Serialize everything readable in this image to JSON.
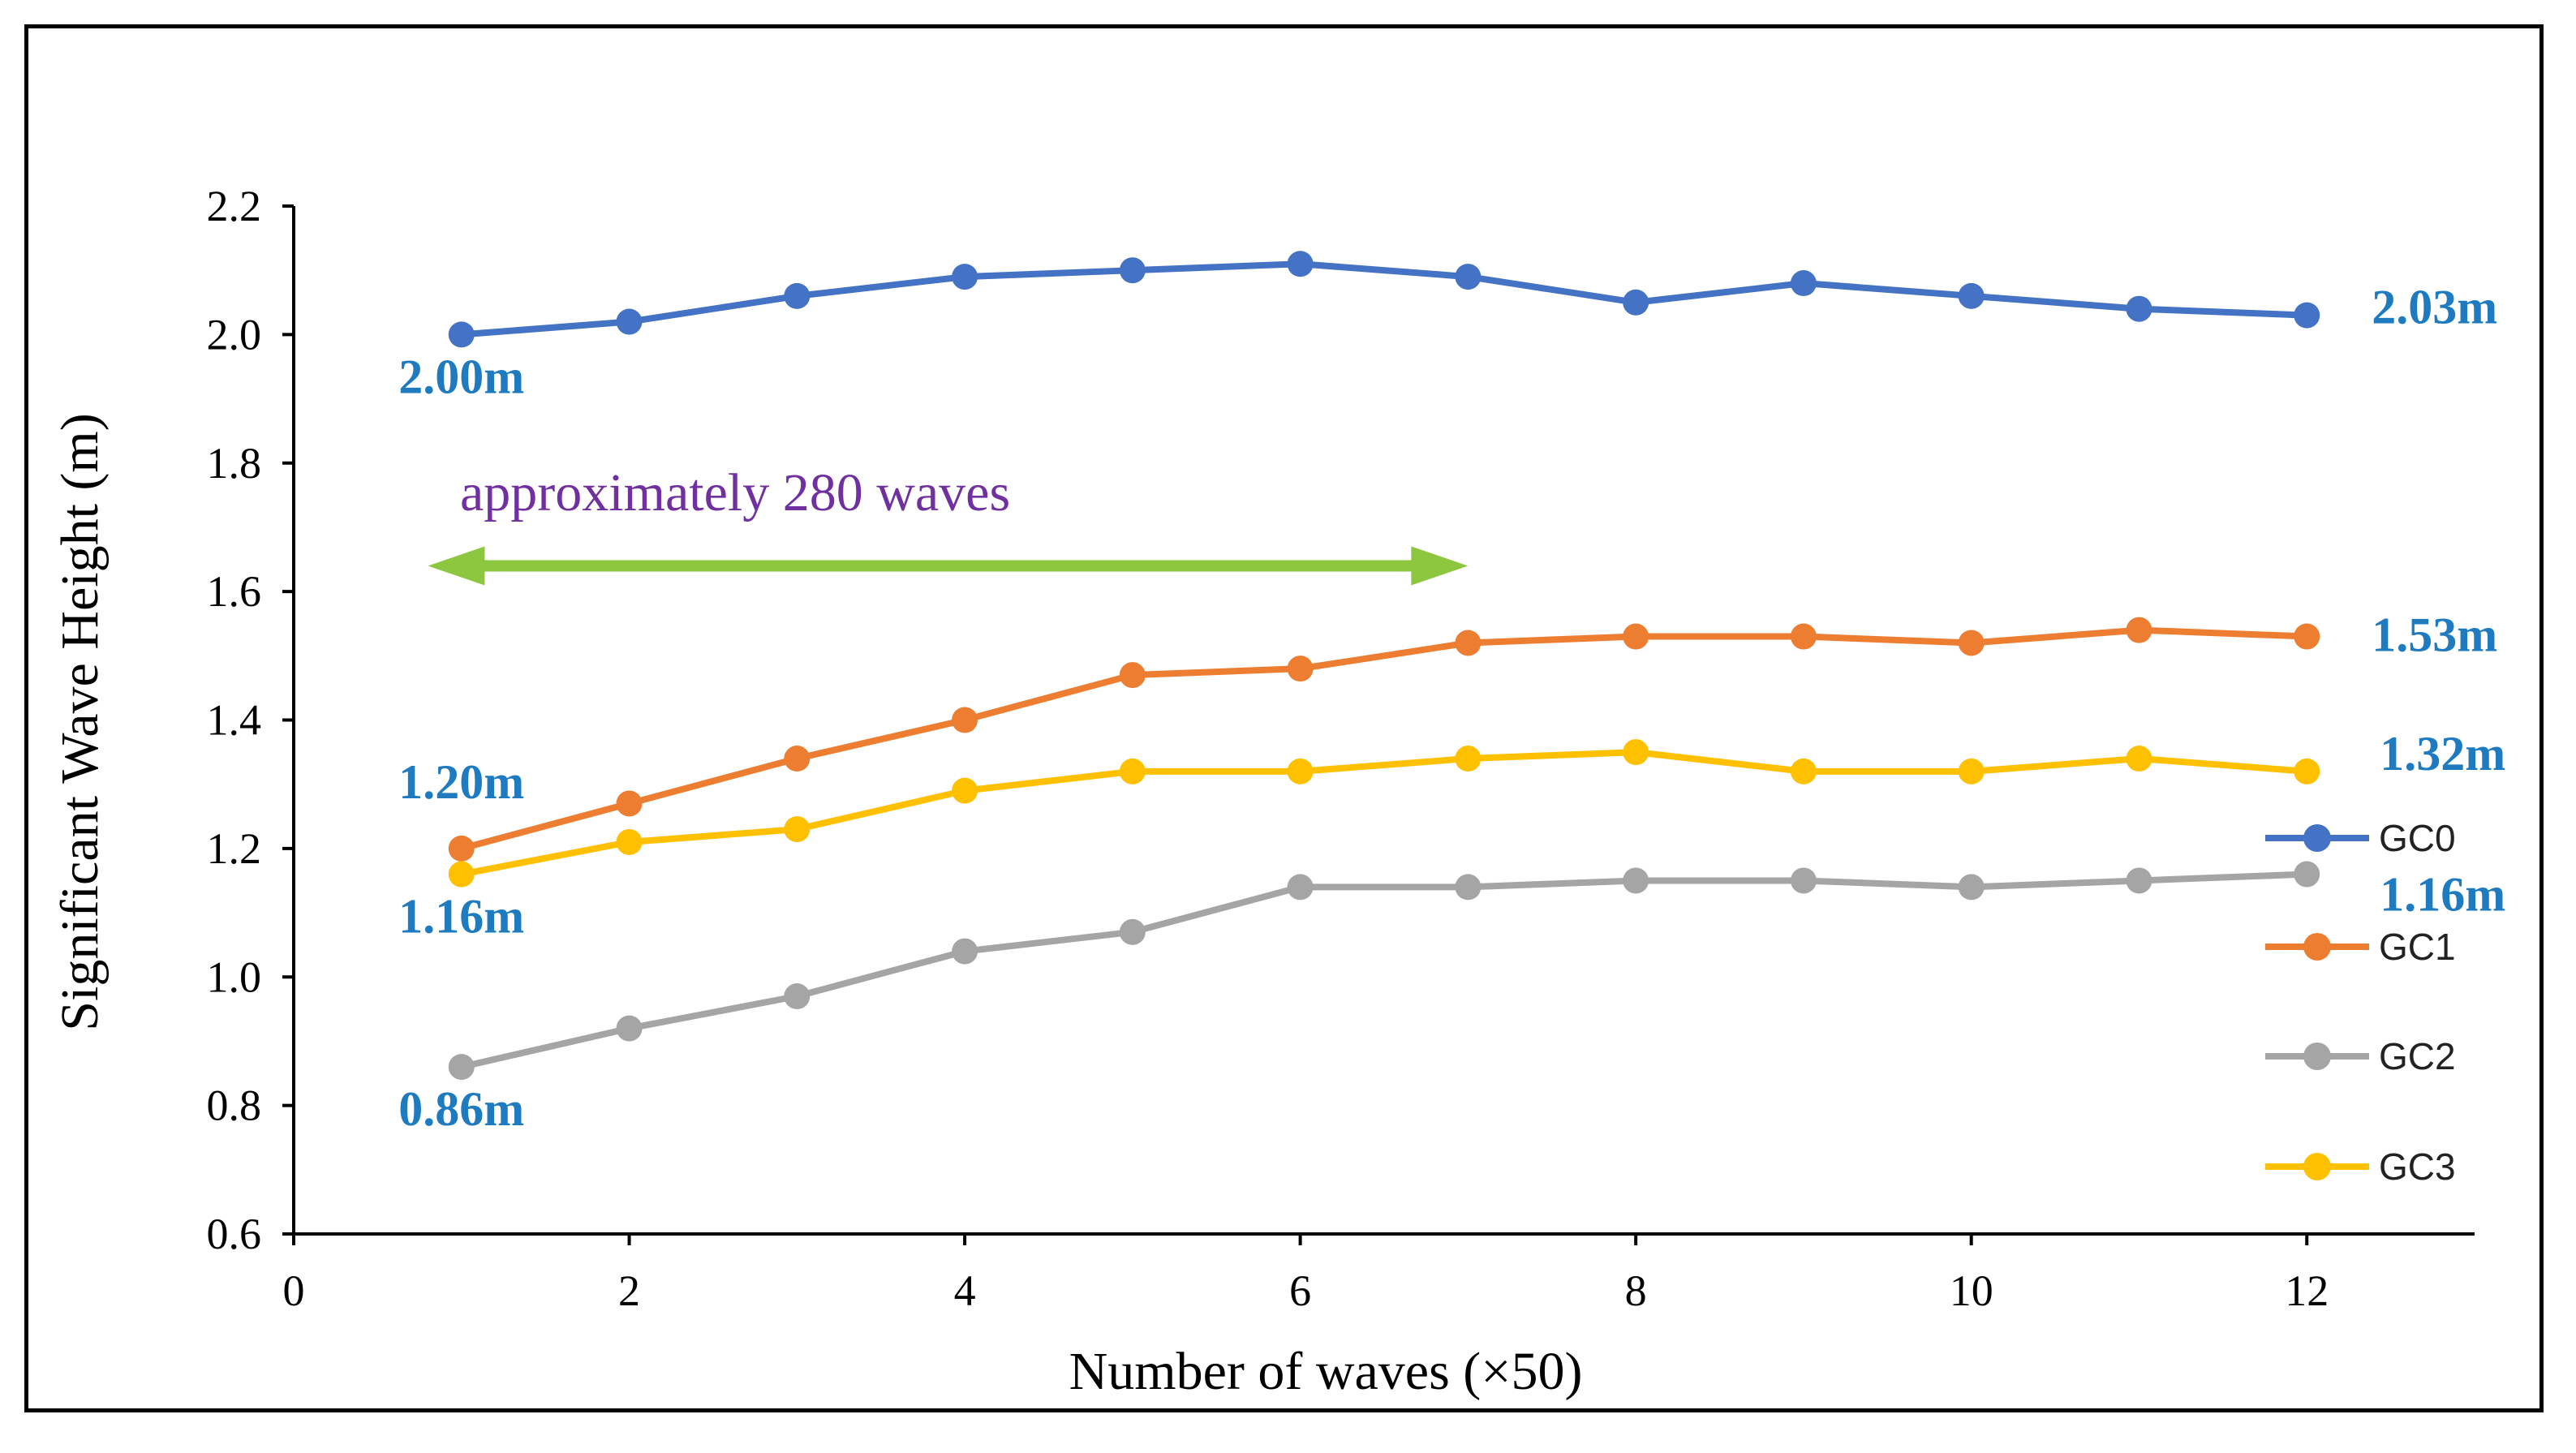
{
  "chart_data": {
    "type": "line",
    "xlabel": "Number of waves (×50)",
    "ylabel": "Significant Wave Height (m)",
    "xlim": [
      0,
      13
    ],
    "ylim": [
      0.6,
      2.2
    ],
    "x_ticks": [
      "0",
      "2",
      "4",
      "6",
      "8",
      "10",
      "12"
    ],
    "y_ticks": [
      "0.6",
      "0.8",
      "1.0",
      "1.2",
      "1.4",
      "1.6",
      "1.8",
      "2.0",
      "2.2"
    ],
    "x": [
      1,
      2,
      3,
      4,
      5,
      6,
      7,
      8,
      9,
      10,
      11,
      12
    ],
    "series": [
      {
        "name": "GC0",
        "color": "#4472C4",
        "values": [
          2.0,
          2.02,
          2.06,
          2.09,
          2.1,
          2.11,
          2.09,
          2.05,
          2.08,
          2.06,
          2.04,
          2.03
        ]
      },
      {
        "name": "GC1",
        "color": "#ED7D31",
        "values": [
          1.2,
          1.27,
          1.34,
          1.4,
          1.47,
          1.48,
          1.52,
          1.53,
          1.53,
          1.52,
          1.54,
          1.53
        ]
      },
      {
        "name": "GC2",
        "color": "#A5A5A5",
        "values": [
          0.86,
          0.92,
          0.97,
          1.04,
          1.07,
          1.14,
          1.14,
          1.15,
          1.15,
          1.14,
          1.15,
          1.16
        ]
      },
      {
        "name": "GC3",
        "color": "#FFC000",
        "values": [
          1.16,
          1.21,
          1.23,
          1.29,
          1.32,
          1.32,
          1.34,
          1.35,
          1.32,
          1.32,
          1.34,
          1.32
        ]
      }
    ],
    "value_labels": [
      {
        "text": "2.00m",
        "series": "GC0",
        "side": "start"
      },
      {
        "text": "2.03m",
        "series": "GC0",
        "side": "end"
      },
      {
        "text": "1.20m",
        "series": "GC1",
        "side": "start"
      },
      {
        "text": "1.53m",
        "series": "GC1",
        "side": "end"
      },
      {
        "text": "1.16m",
        "series": "GC3",
        "side": "start"
      },
      {
        "text": "1.32m",
        "series": "GC3",
        "side": "end"
      },
      {
        "text": "0.86m",
        "series": "GC2",
        "side": "start"
      },
      {
        "text": "1.16m",
        "series": "GC2",
        "side": "end"
      }
    ],
    "value_label_color": "#1F7BC0",
    "annotation": {
      "text": "approximately 280 waves",
      "text_color": "#7030A0",
      "arrow_color": "#8DC63F",
      "arrow_from_x": 0.8,
      "arrow_to_x": 7.0,
      "arrow_y": 1.64
    },
    "legend_position": "right"
  }
}
